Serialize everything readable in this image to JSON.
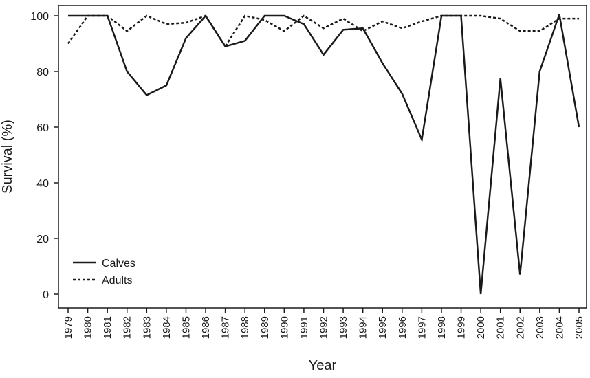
{
  "chart_data": {
    "type": "line",
    "xlabel": "Year",
    "ylabel": "Survival (%)",
    "ylim": [
      0,
      100
    ],
    "yticks": [
      0,
      20,
      40,
      60,
      80,
      100
    ],
    "x": [
      "1979",
      "1980",
      "1981",
      "1982",
      "1983",
      "1984",
      "1985",
      "1986",
      "1987",
      "1988",
      "1989",
      "1990",
      "1991",
      "1992",
      "1993",
      "1994",
      "1995",
      "1996",
      "1997",
      "1998",
      "1999",
      "2000",
      "2001",
      "2002",
      "2003",
      "2004",
      "2005"
    ],
    "series": [
      {
        "name": "Calves",
        "style": "solid",
        "values": [
          100,
          100,
          100,
          80,
          71.5,
          75,
          92,
          100,
          89,
          91,
          100,
          100,
          97,
          86,
          95,
          95.5,
          83,
          72,
          55.5,
          100,
          100,
          0,
          77.5,
          7,
          80,
          100.5,
          60
        ]
      },
      {
        "name": "Adults",
        "style": "dashed",
        "values": [
          90,
          100,
          100,
          94.5,
          100,
          97,
          97.5,
          100,
          89,
          100,
          98.5,
          94.5,
          100,
          95.5,
          99,
          94.5,
          98,
          95.5,
          98,
          100,
          100,
          100,
          99,
          94.5,
          94.5,
          99,
          99
        ]
      }
    ],
    "grid": false,
    "legend_position": "bottom-left"
  }
}
